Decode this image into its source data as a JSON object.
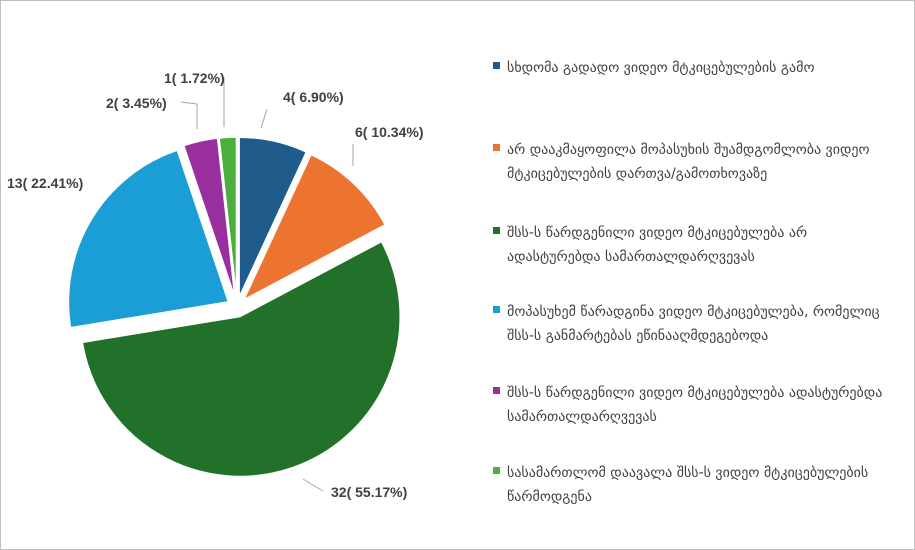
{
  "chart_data": {
    "type": "pie",
    "exploded": true,
    "start_angle_deg": 0,
    "direction": "clockwise",
    "legend_position": "right",
    "slices": [
      {
        "label": "სხდომა გადადო ვიდეო მტკიცებულების გამო",
        "value": 4,
        "percent": 6.9,
        "data_label": "4( 6.90%)",
        "color": "#1f5c8b"
      },
      {
        "label": "არ დააკმაყოფილა მოპასუხის შუამდგომლობა ვიდეო მტკიცებულების დართვა/გამოთხოვაზე",
        "value": 6,
        "percent": 10.34,
        "data_label": "6( 10.34%)",
        "color": "#ed7331"
      },
      {
        "label": "შსს-ს წარდგენილი ვიდეო მტკიცებულება არ ადასტურებდა სამართალდარღვევას",
        "value": 32,
        "percent": 55.17,
        "data_label": "32( 55.17%)",
        "color": "#21712a"
      },
      {
        "label": "მოპასუხემ წარადგინა ვიდეო მტკიცებულება, რომელიც შსს-ს განმარტებას ეწინააღმდეგებოდა",
        "value": 13,
        "percent": 22.41,
        "data_label": "13( 22.41%)",
        "color": "#1b9ed6"
      },
      {
        "label": "შსს-ს წარდგენილი ვიდეო მტკიცებულება ადასტურებდა სამართალდარღვევას",
        "value": 2,
        "percent": 3.45,
        "data_label": "2( 3.45%)",
        "color": "#992f9c"
      },
      {
        "label": "სასამართლომ დაავალა შსს-ს ვიდეო მტკიცებულების წარმოდგენა",
        "value": 1,
        "percent": 1.72,
        "data_label": "1( 1.72%)",
        "color": "#4bae3d"
      }
    ]
  }
}
